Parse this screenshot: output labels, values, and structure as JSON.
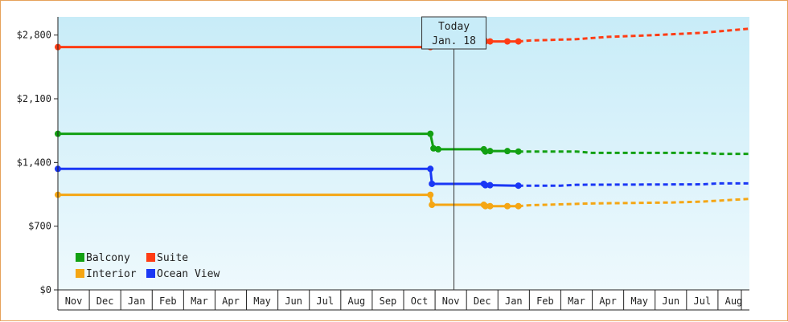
{
  "chart_data": {
    "type": "line",
    "today_marker": {
      "line1": "Today",
      "line2": "Jan. 18",
      "x": 12.6
    },
    "x_tick_labels": [
      "Nov",
      "Dec",
      "Jan",
      "Feb",
      "Mar",
      "Apr",
      "May",
      "Jun",
      "Jul",
      "Aug",
      "Sep",
      "Oct",
      "Nov",
      "Dec",
      "Jan",
      "Feb",
      "Mar",
      "Apr",
      "May",
      "Jun",
      "Jul",
      "Aug"
    ],
    "xlim": [
      0,
      22
    ],
    "ylim": [
      0,
      3000
    ],
    "y_ticks": [
      0,
      700,
      1400,
      2100,
      2800
    ],
    "y_tick_labels": [
      "$0",
      "$700",
      "$1,400",
      "$2,100",
      "$2,800"
    ],
    "legend": [
      {
        "name": "Balcony",
        "color": "#12a012"
      },
      {
        "name": "Suite",
        "color": "#ff3c14"
      },
      {
        "name": "Interior",
        "color": "#f5a614"
      },
      {
        "name": "Ocean View",
        "color": "#1a37f5"
      }
    ],
    "series": [
      {
        "name": "Suite",
        "color": "#ff3c14",
        "actual": [
          [
            0,
            2668
          ],
          [
            11.85,
            2668
          ],
          [
            11.9,
            2755
          ],
          [
            13.55,
            2755
          ],
          [
            13.6,
            2730
          ],
          [
            13.75,
            2730
          ],
          [
            14.3,
            2730
          ],
          [
            14.65,
            2730
          ]
        ],
        "markers": [
          [
            0,
            2668
          ],
          [
            11.85,
            2668
          ],
          [
            11.9,
            2755
          ],
          [
            13.55,
            2755
          ],
          [
            13.6,
            2730
          ],
          [
            13.75,
            2730
          ],
          [
            14.3,
            2730
          ],
          [
            14.65,
            2730
          ]
        ],
        "forecast": [
          [
            14.65,
            2730
          ],
          [
            15.0,
            2740
          ],
          [
            16.5,
            2755
          ],
          [
            17.5,
            2780
          ],
          [
            19,
            2800
          ],
          [
            20.5,
            2825
          ],
          [
            22,
            2870
          ]
        ]
      },
      {
        "name": "Balcony",
        "color": "#12a012",
        "actual": [
          [
            0,
            1715
          ],
          [
            11.85,
            1715
          ],
          [
            11.95,
            1555
          ],
          [
            12.1,
            1545
          ],
          [
            13.55,
            1545
          ],
          [
            13.6,
            1520
          ],
          [
            13.75,
            1525
          ],
          [
            14.3,
            1525
          ],
          [
            14.65,
            1520
          ]
        ],
        "markers": [
          [
            0,
            1715
          ],
          [
            11.85,
            1715
          ],
          [
            11.95,
            1555
          ],
          [
            12.1,
            1545
          ],
          [
            13.55,
            1545
          ],
          [
            13.6,
            1520
          ],
          [
            13.75,
            1525
          ],
          [
            14.3,
            1525
          ],
          [
            14.65,
            1520
          ]
        ],
        "forecast": [
          [
            14.65,
            1520
          ],
          [
            16.5,
            1520
          ],
          [
            17,
            1505
          ],
          [
            20.5,
            1505
          ],
          [
            21,
            1495
          ],
          [
            22,
            1495
          ]
        ]
      },
      {
        "name": "Ocean View",
        "color": "#1a37f5",
        "actual": [
          [
            0,
            1330
          ],
          [
            11.85,
            1330
          ],
          [
            11.9,
            1165
          ],
          [
            13.55,
            1165
          ],
          [
            13.6,
            1150
          ],
          [
            13.75,
            1150
          ],
          [
            14.65,
            1145
          ]
        ],
        "markers": [
          [
            0,
            1330
          ],
          [
            11.85,
            1330
          ],
          [
            11.9,
            1165
          ],
          [
            13.55,
            1165
          ],
          [
            13.6,
            1150
          ],
          [
            13.75,
            1150
          ],
          [
            14.65,
            1145
          ]
        ],
        "forecast": [
          [
            14.65,
            1145
          ],
          [
            16,
            1145
          ],
          [
            16.5,
            1155
          ],
          [
            20.5,
            1160
          ],
          [
            21,
            1170
          ],
          [
            22,
            1170
          ]
        ]
      },
      {
        "name": "Interior",
        "color": "#f5a614",
        "actual": [
          [
            0,
            1045
          ],
          [
            11.85,
            1045
          ],
          [
            11.9,
            935
          ],
          [
            13.55,
            935
          ],
          [
            13.6,
            920
          ],
          [
            13.75,
            920
          ],
          [
            14.3,
            920
          ],
          [
            14.65,
            920
          ]
        ],
        "markers": [
          [
            0,
            1045
          ],
          [
            11.85,
            1045
          ],
          [
            11.9,
            935
          ],
          [
            13.55,
            935
          ],
          [
            13.6,
            920
          ],
          [
            13.75,
            920
          ],
          [
            14.3,
            920
          ],
          [
            14.65,
            920
          ]
        ],
        "forecast": [
          [
            14.65,
            920
          ],
          [
            15,
            930
          ],
          [
            17,
            950
          ],
          [
            19.5,
            960
          ],
          [
            20.5,
            970
          ],
          [
            22,
            1000
          ]
        ]
      }
    ]
  }
}
